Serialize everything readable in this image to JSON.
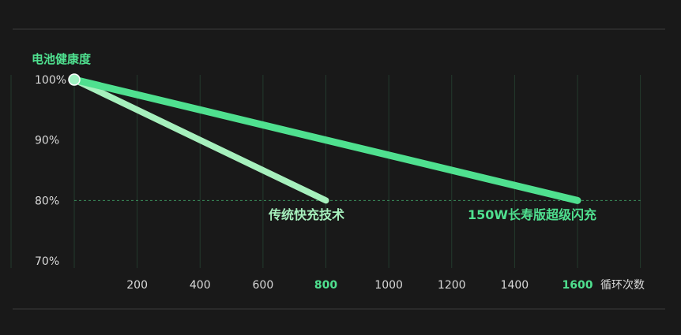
{
  "chart_data": {
    "type": "line",
    "title": "",
    "ylabel": "电池健康度",
    "xlabel": "循环次数",
    "xlim": [
      0,
      1600
    ],
    "ylim": [
      70,
      100
    ],
    "x_ticks": [
      {
        "value": 200,
        "label": "200",
        "highlight": false
      },
      {
        "value": 400,
        "label": "400",
        "highlight": false
      },
      {
        "value": 600,
        "label": "600",
        "highlight": false
      },
      {
        "value": 800,
        "label": "800",
        "highlight": true
      },
      {
        "value": 1000,
        "label": "1000",
        "highlight": false
      },
      {
        "value": 1200,
        "label": "1200",
        "highlight": false
      },
      {
        "value": 1400,
        "label": "1400",
        "highlight": false
      },
      {
        "value": 1600,
        "label": "1600",
        "highlight": true
      }
    ],
    "y_ticks": [
      {
        "value": 100,
        "label": "100%"
      },
      {
        "value": 90,
        "label": "90%"
      },
      {
        "value": 80,
        "label": "80%"
      },
      {
        "value": 70,
        "label": "70%"
      }
    ],
    "reference_line": {
      "y": 80,
      "style": "dashed"
    },
    "grid": "vertical",
    "series": [
      {
        "name": "传统快充技术",
        "x": [
          0,
          800
        ],
        "y": [
          100,
          80
        ],
        "color": "#a6f0bd"
      },
      {
        "name": "150W长寿版超级闪充",
        "x": [
          0,
          1600
        ],
        "y": [
          100,
          80
        ],
        "color": "#4fe08f"
      }
    ],
    "colors": {
      "background": "#191919",
      "grid": "#233a2d",
      "accent": "#4fe08f",
      "axis_text": "#d9d9d9"
    }
  }
}
